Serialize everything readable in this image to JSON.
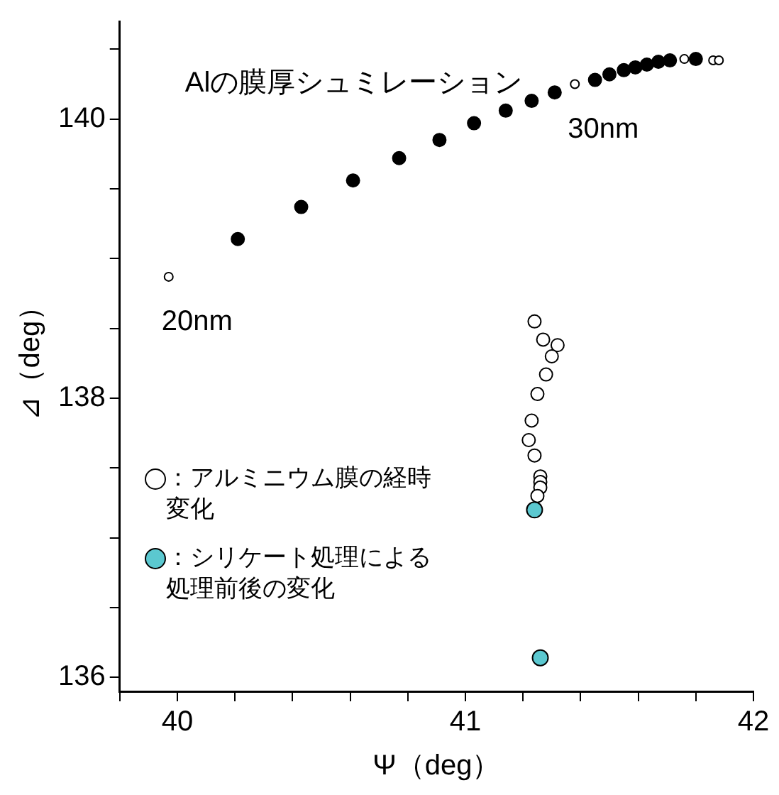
{
  "chart_data": {
    "type": "scatter",
    "xlabel": "Ψ（deg）",
    "ylabel": "⊿（deg）",
    "xlim": [
      39.8,
      42
    ],
    "ylim": [
      135.9,
      140.7
    ],
    "xticks": [
      {
        "value": 39.8,
        "label": null
      },
      40,
      {
        "value": 40.2,
        "label": null
      },
      {
        "value": 40.4,
        "label": null
      },
      {
        "value": 40.6,
        "label": null
      },
      {
        "value": 40.8,
        "label": null
      },
      41,
      {
        "value": 41.2,
        "label": null
      },
      {
        "value": 41.4,
        "label": null
      },
      {
        "value": 41.6,
        "label": null
      },
      {
        "value": 41.8,
        "label": null
      },
      42
    ],
    "yticks": [
      136,
      {
        "value": 136.5,
        "label": null
      },
      {
        "value": 137,
        "label": null
      },
      {
        "value": 137.5,
        "label": null
      },
      138,
      {
        "value": 138.5,
        "label": null
      },
      {
        "value": 139,
        "label": null
      },
      {
        "value": 139.5,
        "label": null
      },
      140,
      {
        "value": 140.5,
        "label": null
      }
    ],
    "marker": "circle",
    "legend": "bottom left",
    "series": [
      {
        "color": "#000000",
        "x": [
          40.21,
          40.43,
          40.61,
          40.77,
          40.91,
          41.03,
          41.14,
          41.23,
          41.31,
          41.45,
          41.5,
          41.55,
          41.59,
          41.63,
          41.67,
          41.71,
          41.8
        ],
        "values": [
          139.14,
          139.37,
          139.56,
          139.72,
          139.85,
          139.97,
          140.06,
          140.13,
          140.19,
          140.28,
          140.32,
          140.35,
          140.37,
          140.39,
          140.41,
          140.42,
          140.43
        ]
      },
      {
        "color": "#ffffff",
        "x": [
          39.97,
          41.38,
          41.76,
          41.86,
          41.88
        ],
        "values": [
          138.87,
          140.25,
          140.43,
          140.42,
          140.42
        ]
      },
      {
        "name": "：アルミニウム膜の経時変化",
        "color": "#ffffff",
        "x": [
          41.24,
          41.27,
          41.32,
          41.3,
          41.28,
          41.25,
          41.23,
          41.22,
          41.24,
          41.26,
          41.26,
          41.26,
          41.25
        ],
        "values": [
          138.55,
          138.42,
          138.38,
          138.3,
          138.17,
          138.03,
          137.84,
          137.7,
          137.59,
          137.44,
          137.4,
          137.36,
          137.3
        ]
      },
      {
        "name": "：シリケート処理による処理前後の変化",
        "color": "#5bc8d0",
        "x": [
          41.24,
          41.26
        ],
        "values": [
          137.2,
          136.14
        ]
      }
    ],
    "annotations": [
      "Alの膜厚シュミレーション",
      {
        "text": "20nm",
        "x": 39.97,
        "y": 138.87
      },
      {
        "text": "30nm",
        "x": 41.38,
        "y": 140.25
      }
    ]
  }
}
